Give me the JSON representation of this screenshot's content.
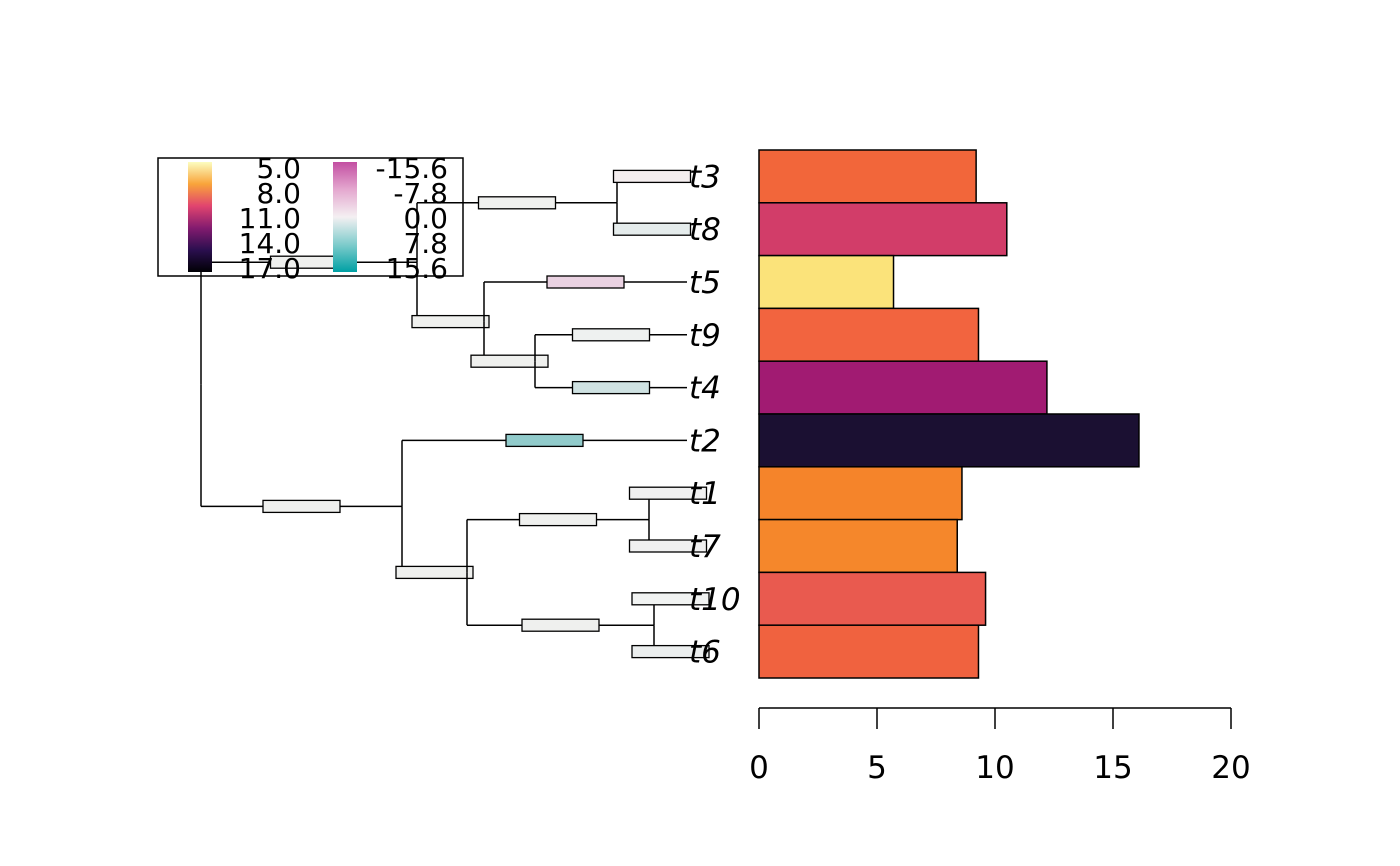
{
  "chart_data": {
    "type": "bar",
    "orientation": "horizontal",
    "categories": [
      "t3",
      "t8",
      "t5",
      "t9",
      "t4",
      "t2",
      "t1",
      "t7",
      "t10",
      "t6"
    ],
    "values": [
      9.2,
      10.5,
      5.7,
      9.3,
      12.2,
      16.1,
      8.6,
      8.4,
      9.6,
      9.3
    ],
    "bar_colors": [
      "#f2663a",
      "#d23d69",
      "#fbe37a",
      "#f2643f",
      "#a11b72",
      "#1b1032",
      "#f5842a",
      "#f5872b",
      "#e95a4f",
      "#f0623f"
    ],
    "xlim": [
      0,
      20
    ],
    "xticks": [
      "0",
      "5",
      "10",
      "15",
      "20"
    ],
    "tree": {
      "tips": [
        "t3",
        "t8",
        "t5",
        "t9",
        "t4",
        "t2",
        "t1",
        "t7",
        "t10",
        "t6"
      ],
      "branch_colors": {
        "t3": "#f4eeef",
        "t8": "#e5ecec",
        "t5": "#ead2e2",
        "t9": "#eef1f0",
        "t4": "#cfe2e2",
        "t2": "#91cbcb",
        "t1": "#f0f0f0",
        "t7": "#f0f0f0",
        "t10": "#f1f3f2",
        "t6": "#ebeeee"
      },
      "internal_color": "#eff0ee"
    },
    "legend": {
      "position": "top-left",
      "scale1": {
        "labels": [
          "5.0",
          "8.0",
          "11.0",
          "14.0",
          "17.0"
        ],
        "colors": [
          "#fcfdbf",
          "#f9a43a",
          "#e1446f",
          "#831b6f",
          "#2b0f4f",
          "#000004"
        ]
      },
      "scale2": {
        "labels": [
          "-15.6",
          "-7.8",
          "0.0",
          "7.8",
          "15.6"
        ],
        "colors": [
          "#c34fa2",
          "#e4a8cf",
          "#f4f0f2",
          "#7fcccc",
          "#00a0a4"
        ]
      }
    }
  }
}
